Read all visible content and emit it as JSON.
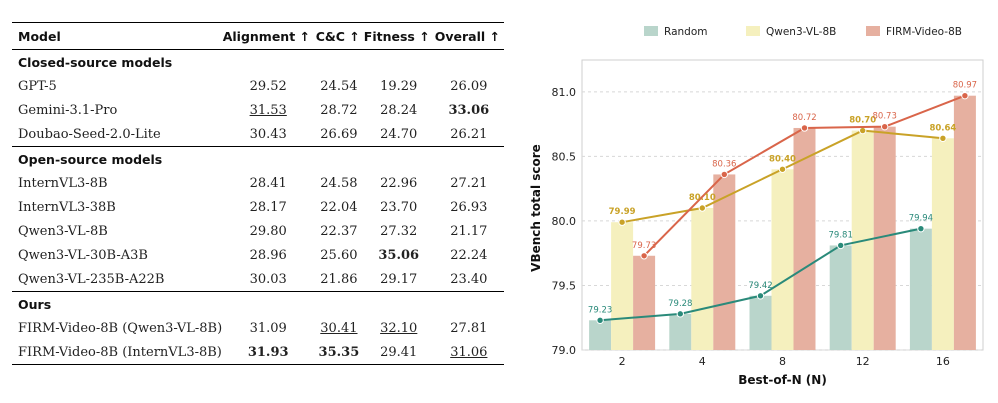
{
  "table": {
    "headers": {
      "model": "Model",
      "alignment": "Alignment ↑",
      "cc": "C&C ↑",
      "fitness": "Fitness ↑",
      "overall": "Overall ↑"
    },
    "sections": [
      {
        "title": "Closed-source models",
        "rows": [
          {
            "model": "GPT-5",
            "alignment": "29.52",
            "cc": "24.54",
            "fitness": "19.29",
            "overall": "26.09"
          },
          {
            "model": "Gemini-3.1-Pro",
            "alignment": "31.53",
            "cc": "28.72",
            "fitness": "28.24",
            "overall": "33.06"
          },
          {
            "model": "Doubao-Seed-2.0-Lite",
            "alignment": "30.43",
            "cc": "26.69",
            "fitness": "24.70",
            "overall": "26.21"
          }
        ]
      },
      {
        "title": "Open-source models",
        "rows": [
          {
            "model": "InternVL3-8B",
            "alignment": "28.41",
            "cc": "24.58",
            "fitness": "22.96",
            "overall": "27.21"
          },
          {
            "model": "InternVL3-38B",
            "alignment": "28.17",
            "cc": "22.04",
            "fitness": "23.70",
            "overall": "26.93"
          },
          {
            "model": "Qwen3-VL-8B",
            "alignment": "29.80",
            "cc": "22.37",
            "fitness": "27.32",
            "overall": "21.17"
          },
          {
            "model": "Qwen3-VL-30B-A3B",
            "alignment": "28.96",
            "cc": "25.60",
            "fitness": "35.06",
            "overall": "22.24"
          },
          {
            "model": "Qwen3-VL-235B-A22B",
            "alignment": "30.03",
            "cc": "21.86",
            "fitness": "29.17",
            "overall": "23.40"
          }
        ]
      },
      {
        "title": "Ours",
        "rows": [
          {
            "model": "FIRM-Video-8B (Qwen3-VL-8B)",
            "alignment": "31.09",
            "cc": "30.41",
            "fitness": "32.10",
            "overall": "27.81"
          },
          {
            "model": "FIRM-Video-8B (InternVL3-8B)",
            "alignment": "31.93",
            "cc": "35.35",
            "fitness": "29.41",
            "overall": "31.06"
          }
        ]
      }
    ],
    "emphasis": {
      "bold": [
        [
          0,
          1,
          "overall"
        ],
        [
          1,
          3,
          "fitness"
        ],
        [
          2,
          1,
          "alignment"
        ],
        [
          2,
          1,
          "cc"
        ]
      ],
      "underline": [
        [
          0,
          1,
          "alignment"
        ],
        [
          2,
          0,
          "cc"
        ],
        [
          2,
          0,
          "fitness"
        ],
        [
          2,
          1,
          "overall"
        ]
      ]
    }
  },
  "chart_data": {
    "type": "bar",
    "categories": [
      "2",
      "4",
      "8",
      "12",
      "16"
    ],
    "xlabel": "Best-of-N  (N)",
    "ylabel": "VBench total score",
    "ylim": [
      79.0,
      81.2
    ],
    "yticks": [
      "79.0",
      "79.5",
      "80.0",
      "80.5",
      "81.0"
    ],
    "grid": true,
    "legend_position": "top",
    "overlay_lines": true,
    "series": [
      {
        "name": "Random",
        "values": [
          79.23,
          79.28,
          79.42,
          79.81,
          79.94
        ],
        "labels": [
          "79.23",
          "79.28",
          "79.42",
          "79.81",
          "79.94"
        ],
        "bar_color": "#b9d5cb",
        "line_color": "#2a8a7a",
        "label_bold": false
      },
      {
        "name": "Qwen3-VL-8B",
        "values": [
          79.99,
          80.1,
          80.4,
          80.7,
          80.64
        ],
        "labels": [
          "79.99",
          "80.10",
          "80.40",
          "80.70",
          "80.64"
        ],
        "bar_color": "#f5f0be",
        "line_color": "#c9a227",
        "label_bold": true
      },
      {
        "name": "FIRM-Video-8B",
        "values": [
          79.73,
          80.36,
          80.72,
          80.73,
          80.97
        ],
        "labels": [
          "79.73",
          "80.36",
          "80.72",
          "80.73",
          "80.97"
        ],
        "bar_color": "#e6b0a0",
        "line_color": "#d9654a",
        "label_bold": false
      }
    ]
  }
}
